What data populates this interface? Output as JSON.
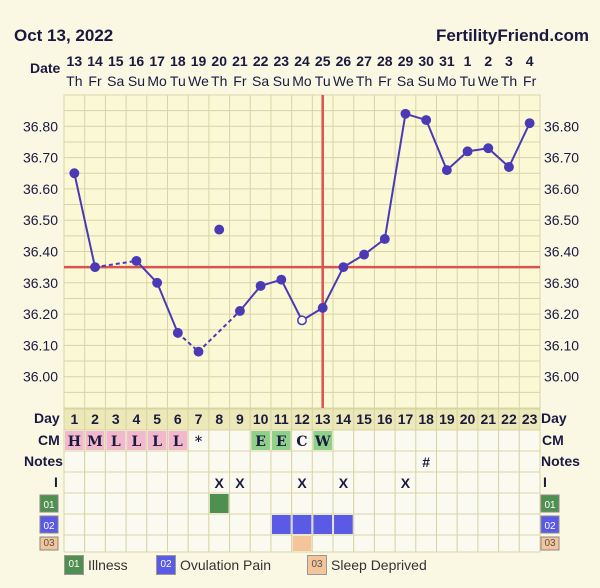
{
  "header": {
    "date": "Oct 13, 2022",
    "brand": "FertilityFriend.com"
  },
  "row_labels": {
    "date": "Date",
    "day": "Day",
    "cm": "CM",
    "notes": "Notes",
    "intercourse": "I",
    "row01": "01",
    "row02": "02",
    "row03": "03"
  },
  "colors": {
    "background": "#faf7e2",
    "grid": "#d8d4a6",
    "line": "#4a3ab5",
    "coverline": "#d9534f",
    "cm_pink": "#f2b8cc",
    "cm_green": "#8fd18a",
    "illness": "#4f8f4f",
    "ovulation_pain": "#5a5ae6",
    "sleep": "#f4c49a"
  },
  "legend": [
    {
      "code": "01",
      "label": "Illness",
      "color": "#4f8f4f"
    },
    {
      "code": "02",
      "label": "Ovulation Pain",
      "color": "#5a5ae6"
    },
    {
      "code": "03",
      "label": "Sleep Deprived",
      "color": "#f4c49a"
    }
  ],
  "chart_data": {
    "type": "line",
    "dates": [
      "13",
      "14",
      "15",
      "16",
      "17",
      "18",
      "19",
      "20",
      "21",
      "22",
      "23",
      "24",
      "25",
      "26",
      "27",
      "28",
      "29",
      "30",
      "31",
      "1",
      "2",
      "3",
      "4"
    ],
    "weekdays": [
      "Th",
      "Fr",
      "Sa",
      "Su",
      "Mo",
      "Tu",
      "We",
      "Th",
      "Fr",
      "Sa",
      "Su",
      "Mo",
      "Tu",
      "We",
      "Th",
      "Fr",
      "Sa",
      "Su",
      "Mo",
      "Tu",
      "We",
      "Th",
      "Fr"
    ],
    "cycle_days": [
      "1",
      "2",
      "3",
      "4",
      "5",
      "6",
      "7",
      "8",
      "9",
      "10",
      "11",
      "12",
      "13",
      "14",
      "15",
      "16",
      "17",
      "18",
      "19",
      "20",
      "21",
      "22",
      "23"
    ],
    "temps": [
      36.65,
      36.35,
      null,
      36.37,
      36.3,
      36.14,
      36.08,
      36.47,
      36.21,
      36.29,
      36.31,
      36.18,
      36.22,
      36.35,
      36.39,
      36.44,
      36.84,
      36.82,
      36.66,
      36.72,
      36.73,
      36.67,
      36.81
    ],
    "excluded_day_index": 7,
    "open_point_indices": [
      11
    ],
    "dashed_segments": [
      [
        1,
        3
      ],
      [
        5,
        6
      ]
    ],
    "y_ticks": [
      "36.80",
      "36.70",
      "36.60",
      "36.50",
      "36.40",
      "36.30",
      "36.20",
      "36.10",
      "36.00"
    ],
    "ylim": [
      35.9,
      36.9
    ],
    "coverline": 36.35,
    "ovulation_day_index": 12,
    "cm": [
      "H",
      "M",
      "L",
      "L",
      "L",
      "L",
      "*",
      "",
      "",
      "E",
      "E",
      "C",
      "W",
      "",
      "",
      "",
      "",
      "",
      "",
      "",
      "",
      "",
      ""
    ],
    "cm_colors": [
      "pink",
      "pink",
      "pink",
      "pink",
      "pink",
      "pink",
      "",
      "",
      "",
      "green",
      "green",
      "",
      "green",
      "",
      "",
      "",
      "",
      "",
      "",
      "",
      "",
      "",
      ""
    ],
    "notes": [
      "",
      "",
      "",
      "",
      "",
      "",
      "",
      "",
      "",
      "",
      "",
      "",
      "",
      "",
      "",
      "",
      "",
      "#",
      "",
      "",
      "",
      "",
      ""
    ],
    "intercourse": [
      "",
      "",
      "",
      "",
      "",
      "",
      "",
      "X",
      "X",
      "",
      "",
      "X",
      "",
      "X",
      "",
      "",
      "X",
      "",
      "",
      "",
      "",
      "",
      ""
    ],
    "row01": [
      7
    ],
    "row02": [
      10,
      11,
      12,
      13
    ],
    "row03": [
      11
    ]
  }
}
